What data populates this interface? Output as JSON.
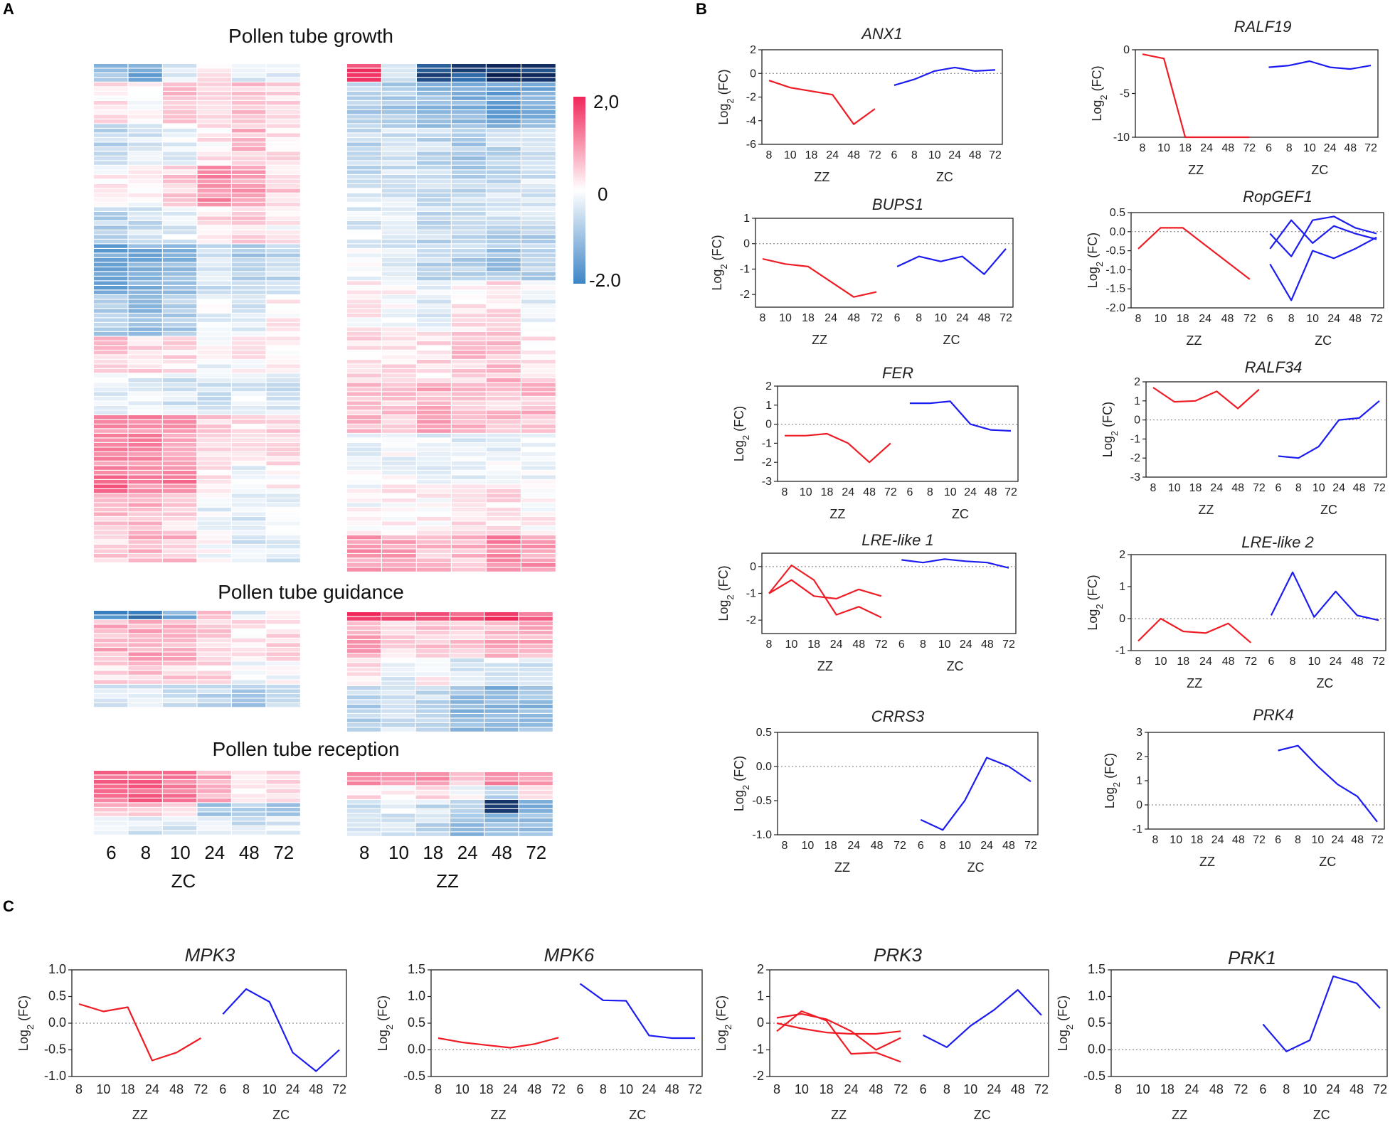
{
  "panels": {
    "a": "A",
    "b": "B",
    "c": "C"
  },
  "colors": {
    "zz": "#ee1c25",
    "zc": "#1c1cf0",
    "hm_high": "#f0285a",
    "hm_mid": "#ffffff",
    "hm_low": "#3d85c6",
    "hm_extreme": "#0a1e50"
  },
  "ylabel_prefix": "Log",
  "ylabel_sub": "2",
  "ylabel_suffix": " (FC)",
  "heatmap": {
    "titles": {
      "growth": "Pollen tube growth",
      "guidance": "Pollen tube guidance",
      "reception": "Pollen tube reception"
    },
    "colorbar": {
      "max_label": "2,0",
      "mid_label": "0",
      "min_label": "-2.0",
      "max": 2,
      "min": -2
    },
    "left": {
      "ticks": [
        "6",
        "8",
        "10",
        "24",
        "48",
        "72"
      ],
      "group": "ZC"
    },
    "right": {
      "ticks": [
        "8",
        "10",
        "18",
        "24",
        "48",
        "72"
      ],
      "group": "ZZ"
    }
  },
  "chart_data": [
    {
      "id": "ANX1",
      "title": "ANX1",
      "type": "line",
      "ylim": [
        -6,
        2
      ],
      "yticks": [
        "2",
        "0",
        "-2",
        "-4",
        "-6"
      ],
      "ytick_values": [
        2,
        0,
        -2,
        -4,
        -6
      ],
      "zz_ticks": [
        "8",
        "10",
        "18",
        "24",
        "48",
        "72"
      ],
      "zc_ticks": [
        "6",
        "8",
        "10",
        "24",
        "48",
        "72"
      ],
      "zz_label": "ZZ",
      "zc_label": "ZC",
      "series": [
        {
          "group": "ZZ",
          "values": [
            -0.6,
            -1.2,
            -1.5,
            -1.8,
            -4.3,
            -3.0
          ]
        },
        {
          "group": "ZC",
          "values": [
            -1.0,
            -0.5,
            0.2,
            0.5,
            0.2,
            0.3
          ]
        }
      ]
    },
    {
      "id": "RALF19",
      "title": "RALF19",
      "type": "line",
      "ylim": [
        -10,
        0
      ],
      "yticks": [
        "0",
        "-5",
        "-10"
      ],
      "ytick_values": [
        0,
        -5,
        -10
      ],
      "zz_ticks": [
        "8",
        "10",
        "18",
        "24",
        "48",
        "72"
      ],
      "zc_ticks": [
        "6",
        "8",
        "10",
        "24",
        "48",
        "72"
      ],
      "zz_label": "ZZ",
      "zc_label": "ZC",
      "series": [
        {
          "group": "ZZ",
          "values": [
            -0.5,
            -1.0,
            -10,
            -10,
            -10,
            -10
          ]
        },
        {
          "group": "ZC",
          "values": [
            -2.0,
            -1.8,
            -1.3,
            -2.0,
            -2.2,
            -1.8
          ]
        }
      ]
    },
    {
      "id": "BUPS1",
      "title": "BUPS1",
      "type": "line",
      "ylim": [
        -2.5,
        1
      ],
      "yticks": [
        "1",
        "0",
        "-1",
        "-2"
      ],
      "ytick_values": [
        1,
        0,
        -1,
        -2
      ],
      "zz_ticks": [
        "8",
        "10",
        "18",
        "24",
        "48",
        "72"
      ],
      "zc_ticks": [
        "6",
        "8",
        "10",
        "24",
        "48",
        "72"
      ],
      "zz_label": "ZZ",
      "zc_label": "ZC",
      "series": [
        {
          "group": "ZZ",
          "values": [
            -0.6,
            -0.8,
            -0.9,
            -1.5,
            -2.1,
            -1.9
          ]
        },
        {
          "group": "ZC",
          "values": [
            -0.9,
            -0.5,
            -0.7,
            -0.5,
            -1.2,
            -0.2
          ]
        }
      ]
    },
    {
      "id": "RopGEF1",
      "title": "RopGEF1",
      "type": "line",
      "ylim": [
        -2.0,
        0.5
      ],
      "yticks": [
        "0.5",
        "0.0",
        "-0.5",
        "-1.0",
        "-1.5",
        "-2.0"
      ],
      "ytick_values": [
        0.5,
        0,
        -0.5,
        -1,
        -1.5,
        -2
      ],
      "zz_ticks": [
        "8",
        "10",
        "18",
        "24",
        "48",
        "72"
      ],
      "zc_ticks": [
        "6",
        "8",
        "10",
        "24",
        "48",
        "72"
      ],
      "zz_label": "ZZ",
      "zc_label": "ZC",
      "series": [
        {
          "group": "ZZ",
          "values": [
            -0.45,
            0.1,
            0.1,
            -0.35,
            -0.8,
            -1.25
          ]
        },
        {
          "group": "ZC",
          "values": [
            -0.05,
            -0.65,
            0.3,
            0.4,
            0.1,
            -0.05
          ]
        },
        {
          "group": "ZC",
          "values": [
            -0.45,
            0.3,
            -0.3,
            0.15,
            -0.05,
            -0.2
          ]
        },
        {
          "group": "ZC",
          "values": [
            -0.85,
            -1.8,
            -0.5,
            -0.7,
            -0.45,
            -0.15
          ]
        }
      ]
    },
    {
      "id": "FER",
      "title": "FER",
      "type": "line",
      "ylim": [
        -3,
        2
      ],
      "yticks": [
        "2",
        "1",
        "0",
        "-1",
        "-2",
        "-3"
      ],
      "ytick_values": [
        2,
        1,
        0,
        -1,
        -2,
        -3
      ],
      "zz_ticks": [
        "8",
        "10",
        "18",
        "24",
        "48",
        "72"
      ],
      "zc_ticks": [
        "6",
        "8",
        "10",
        "24",
        "48",
        "72"
      ],
      "zz_label": "ZZ",
      "zc_label": "ZC",
      "series": [
        {
          "group": "ZZ",
          "values": [
            -0.6,
            -0.6,
            -0.5,
            -1.0,
            -2.0,
            -1.0
          ]
        },
        {
          "group": "ZC",
          "values": [
            1.1,
            1.1,
            1.2,
            0.0,
            -0.3,
            -0.35
          ]
        }
      ]
    },
    {
      "id": "RALF34",
      "title": "RALF34",
      "type": "line",
      "ylim": [
        -3,
        2
      ],
      "yticks": [
        "2",
        "1",
        "0",
        "-1",
        "-2",
        "-3"
      ],
      "ytick_values": [
        2,
        1,
        0,
        -1,
        -2,
        -3
      ],
      "zz_ticks": [
        "8",
        "10",
        "18",
        "24",
        "48",
        "72"
      ],
      "zc_ticks": [
        "6",
        "8",
        "10",
        "24",
        "48",
        "72"
      ],
      "zz_label": "ZZ",
      "zc_label": "ZC",
      "series": [
        {
          "group": "ZZ",
          "values": [
            1.7,
            0.95,
            1.0,
            1.5,
            0.6,
            1.6
          ]
        },
        {
          "group": "ZC",
          "values": [
            -1.9,
            -2.0,
            -1.4,
            0.0,
            0.1,
            1.0
          ]
        }
      ]
    },
    {
      "id": "LRE1",
      "title": "LRE-like 1",
      "type": "line",
      "ylim": [
        -2.5,
        0.5
      ],
      "yticks": [
        "0",
        "-1",
        "-2"
      ],
      "ytick_values": [
        0,
        -1,
        -2
      ],
      "zz_ticks": [
        "8",
        "10",
        "18",
        "24",
        "48",
        "72"
      ],
      "zc_ticks": [
        "6",
        "8",
        "10",
        "24",
        "48",
        "72"
      ],
      "zz_label": "ZZ",
      "zc_label": "ZC",
      "series": [
        {
          "group": "ZZ",
          "values": [
            -1.0,
            0.05,
            -0.5,
            -1.8,
            -1.5,
            -1.9
          ]
        },
        {
          "group": "ZZ",
          "values": [
            -1.0,
            -0.5,
            -1.1,
            -1.2,
            -0.85,
            -1.1
          ]
        },
        {
          "group": "ZC",
          "values": [
            0.25,
            0.15,
            0.28,
            0.2,
            0.15,
            -0.05
          ]
        }
      ]
    },
    {
      "id": "LRE2",
      "title": "LRE-like 2",
      "type": "line",
      "ylim": [
        -1,
        2
      ],
      "yticks": [
        "2",
        "1",
        "0",
        "-1"
      ],
      "ytick_values": [
        2,
        1,
        0,
        -1
      ],
      "zz_ticks": [
        "8",
        "10",
        "18",
        "24",
        "48",
        "72"
      ],
      "zc_ticks": [
        "6",
        "8",
        "10",
        "24",
        "48",
        "72"
      ],
      "zz_label": "ZZ",
      "zc_label": "ZC",
      "series": [
        {
          "group": "ZZ",
          "values": [
            -0.7,
            0.0,
            -0.4,
            -0.45,
            -0.15,
            -0.75
          ]
        },
        {
          "group": "ZC",
          "values": [
            0.1,
            1.45,
            0.05,
            0.85,
            0.1,
            -0.05
          ]
        }
      ]
    },
    {
      "id": "CRRS3",
      "title": "CRRS3",
      "type": "line",
      "ylim": [
        -1.0,
        0.5
      ],
      "yticks": [
        "0.5",
        "0.0",
        "-0.5",
        "-1.0"
      ],
      "ytick_values": [
        0.5,
        0,
        -0.5,
        -1
      ],
      "zz_ticks": [
        "8",
        "10",
        "18",
        "24",
        "48",
        "72"
      ],
      "zc_ticks": [
        "6",
        "8",
        "10",
        "24",
        "48",
        "72"
      ],
      "zz_label": "ZZ",
      "zc_label": "ZC",
      "series": [
        {
          "group": "ZC",
          "values": [
            -0.78,
            -0.93,
            -0.5,
            0.13,
            0.0,
            -0.22
          ]
        }
      ]
    },
    {
      "id": "PRK4",
      "title": "PRK4",
      "type": "line",
      "ylim": [
        -1,
        3
      ],
      "yticks": [
        "3",
        "2",
        "1",
        "0",
        "-1"
      ],
      "ytick_values": [
        3,
        2,
        1,
        0,
        -1
      ],
      "zz_ticks": [
        "8",
        "10",
        "18",
        "24",
        "48",
        "72"
      ],
      "zc_ticks": [
        "6",
        "8",
        "10",
        "24",
        "48",
        "72"
      ],
      "zz_label": "ZZ",
      "zc_label": "ZC",
      "series": [
        {
          "group": "ZC",
          "values": [
            2.25,
            2.45,
            1.6,
            0.85,
            0.35,
            -0.7
          ]
        }
      ]
    },
    {
      "id": "MPK3",
      "title": "MPK3",
      "type": "line",
      "ylim": [
        -1.0,
        1.0
      ],
      "yticks": [
        "1.0",
        "0.5",
        "0.0",
        "-0.5",
        "-1.0"
      ],
      "ytick_values": [
        1,
        0.5,
        0,
        -0.5,
        -1
      ],
      "zz_ticks": [
        "8",
        "10",
        "18",
        "24",
        "48",
        "72"
      ],
      "zc_ticks": [
        "6",
        "8",
        "10",
        "24",
        "48",
        "72"
      ],
      "zz_label": "ZZ",
      "zc_label": "ZC",
      "series": [
        {
          "group": "ZZ",
          "values": [
            0.36,
            0.22,
            0.3,
            -0.7,
            -0.55,
            -0.28
          ]
        },
        {
          "group": "ZC",
          "values": [
            0.17,
            0.64,
            0.4,
            -0.55,
            -0.9,
            -0.5
          ]
        }
      ]
    },
    {
      "id": "MPK6",
      "title": "MPK6",
      "type": "line",
      "ylim": [
        -0.5,
        1.5
      ],
      "yticks": [
        "1.5",
        "1.0",
        "0.5",
        "0.0",
        "-0.5"
      ],
      "ytick_values": [
        1.5,
        1,
        0.5,
        0,
        -0.5
      ],
      "zz_ticks": [
        "8",
        "10",
        "18",
        "24",
        "48",
        "72"
      ],
      "zc_ticks": [
        "6",
        "8",
        "10",
        "24",
        "48",
        "72"
      ],
      "zz_label": "ZZ",
      "zc_label": "ZC",
      "series": [
        {
          "group": "ZZ",
          "values": [
            0.22,
            0.14,
            0.09,
            0.04,
            0.11,
            0.23
          ]
        },
        {
          "group": "ZC",
          "values": [
            1.24,
            0.93,
            0.92,
            0.27,
            0.22,
            0.22
          ]
        }
      ]
    },
    {
      "id": "PRK3",
      "title": "PRK3",
      "type": "line",
      "ylim": [
        -2,
        2
      ],
      "yticks": [
        "2",
        "1",
        "0",
        "-1",
        "-2"
      ],
      "ytick_values": [
        2,
        1,
        0,
        -1,
        -2
      ],
      "zz_ticks": [
        "8",
        "10",
        "18",
        "24",
        "48",
        "72"
      ],
      "zc_ticks": [
        "6",
        "8",
        "10",
        "24",
        "48",
        "72"
      ],
      "zz_label": "ZZ",
      "zc_label": "ZC",
      "series": [
        {
          "group": "ZZ",
          "values": [
            -0.3,
            0.45,
            0.1,
            -1.15,
            -1.1,
            -1.45
          ]
        },
        {
          "group": "ZZ",
          "values": [
            0.2,
            0.35,
            0.15,
            -0.3,
            -1.0,
            -0.55
          ]
        },
        {
          "group": "ZZ",
          "values": [
            0.0,
            -0.2,
            -0.35,
            -0.4,
            -0.4,
            -0.3
          ]
        },
        {
          "group": "ZC",
          "values": [
            -0.45,
            -0.9,
            -0.1,
            0.5,
            1.25,
            0.3
          ]
        }
      ]
    },
    {
      "id": "PRK1",
      "title": "PRK1",
      "type": "line",
      "ylim": [
        -0.5,
        1.5
      ],
      "yticks": [
        "1.5",
        "1.0",
        "0.5",
        "0.0",
        "-0.5"
      ],
      "ytick_values": [
        1.5,
        1,
        0.5,
        0,
        -0.5
      ],
      "zz_ticks": [
        "8",
        "10",
        "18",
        "24",
        "48",
        "72"
      ],
      "zc_ticks": [
        "6",
        "8",
        "10",
        "24",
        "48",
        "72"
      ],
      "zz_label": "ZZ",
      "zc_label": "ZC",
      "series": [
        {
          "group": "ZC",
          "values": [
            0.48,
            -0.03,
            0.18,
            1.38,
            1.25,
            0.78
          ]
        }
      ]
    }
  ]
}
